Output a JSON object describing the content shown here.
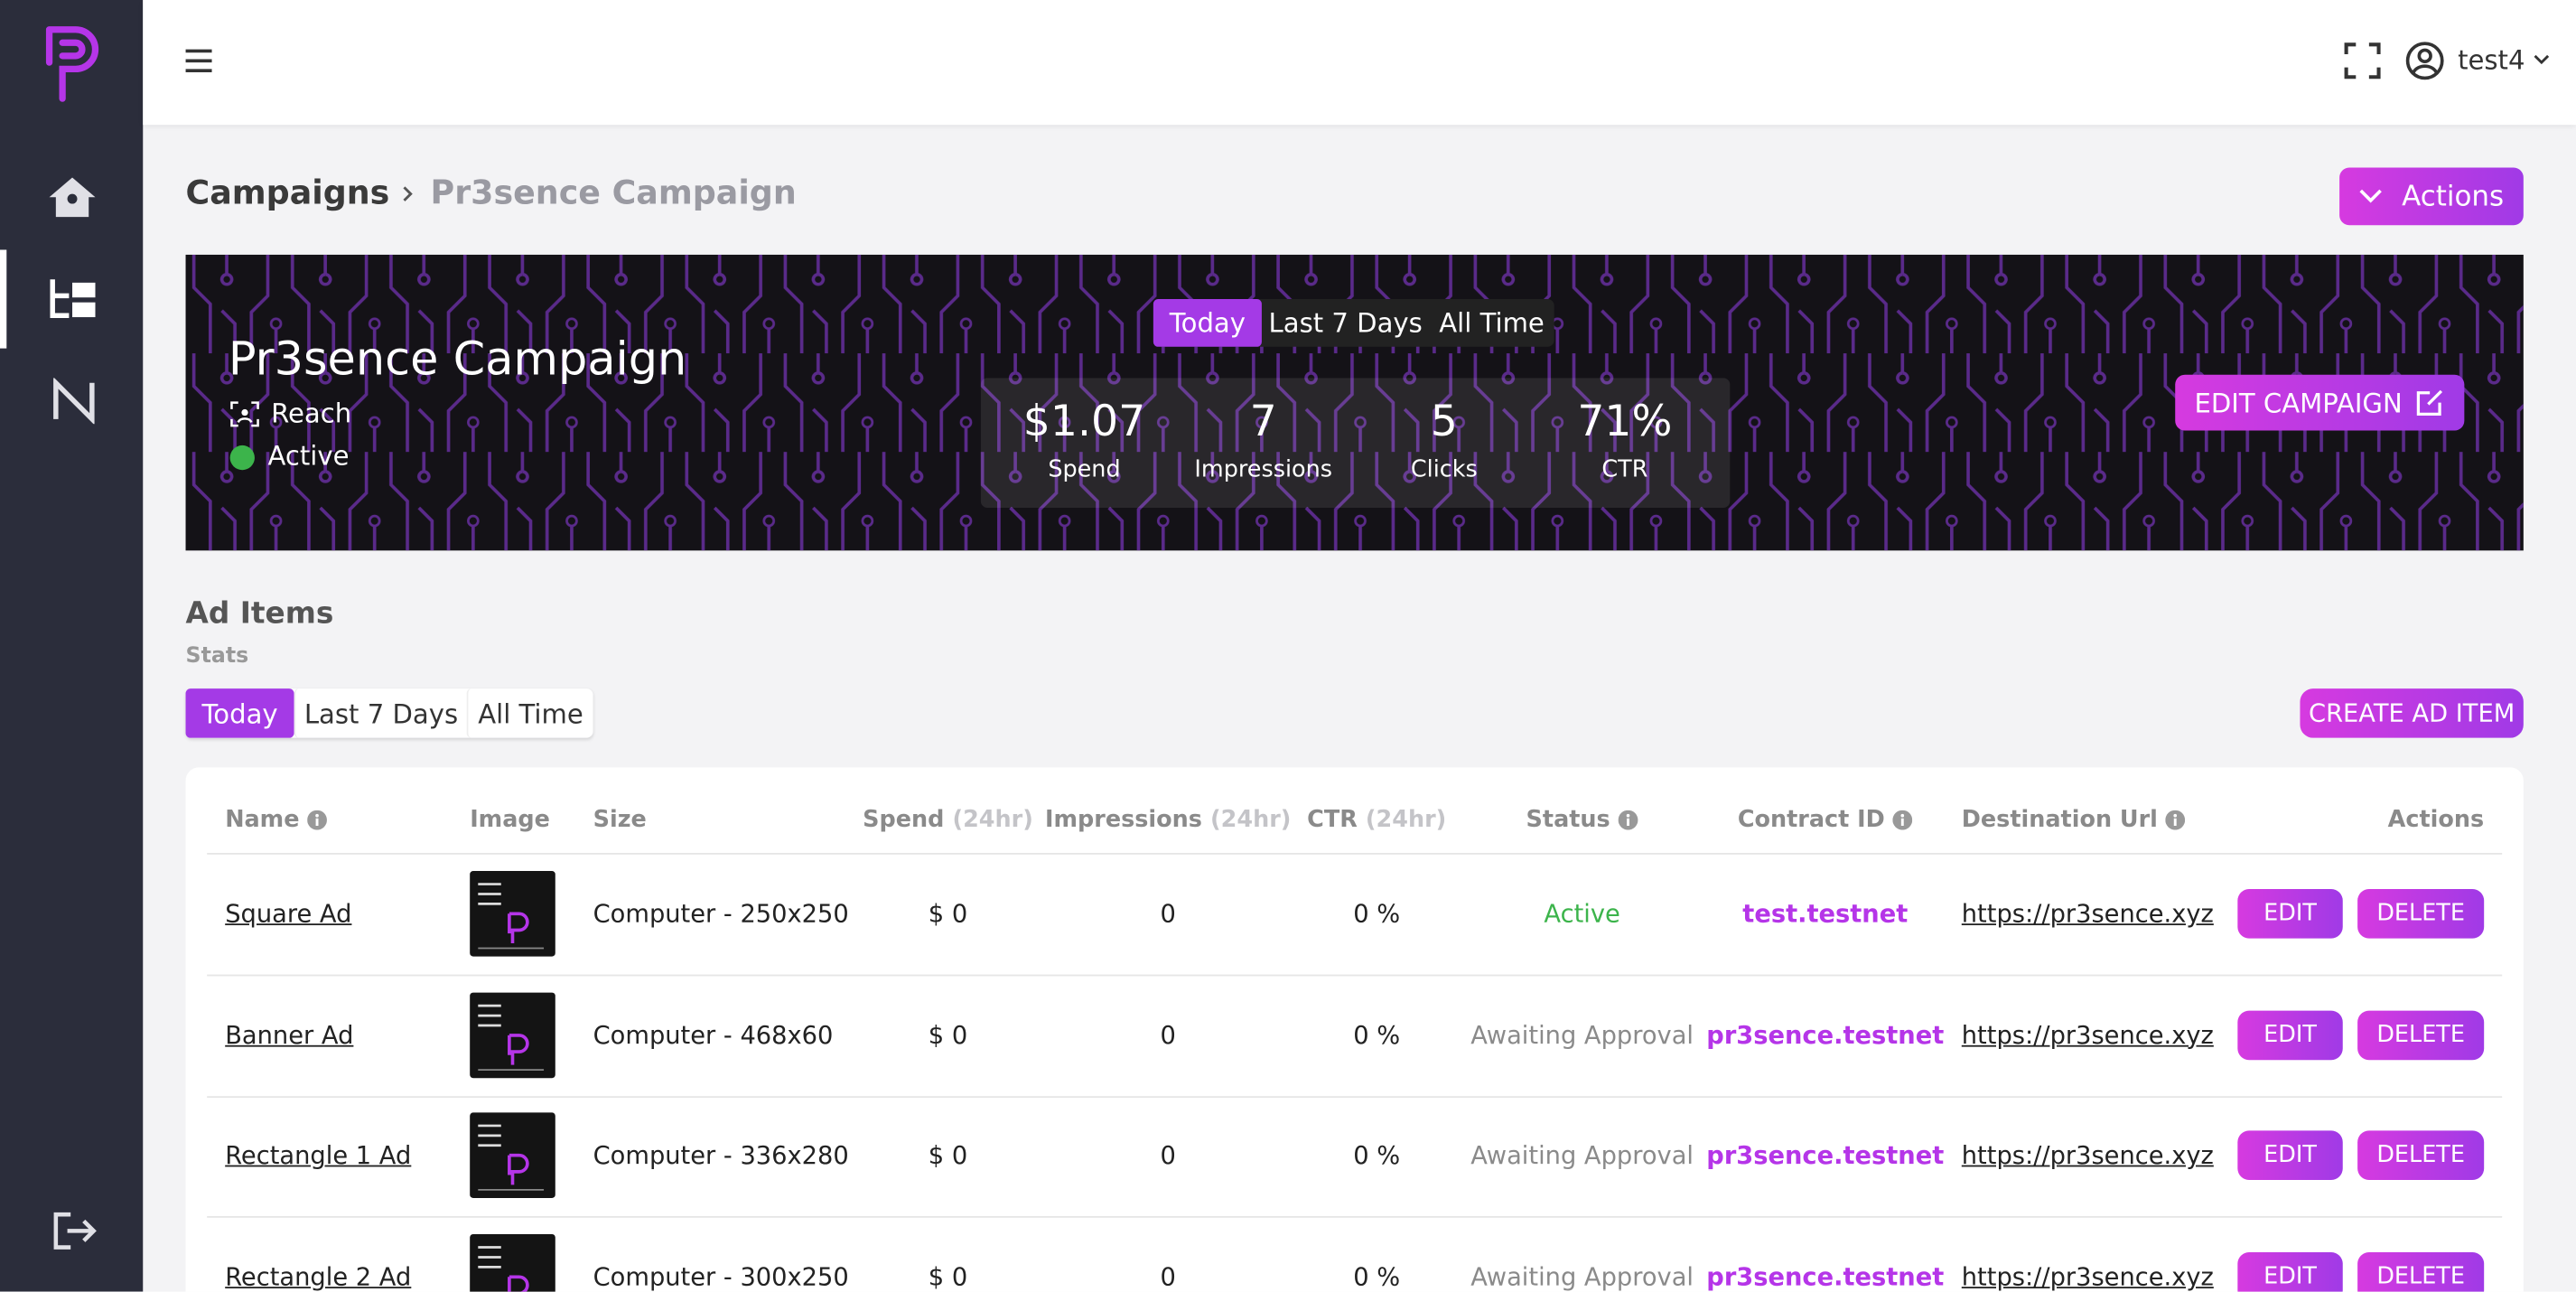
{
  "header": {
    "user": "test4"
  },
  "breadcrumb": [
    "Campaigns",
    "Pr3sence Campaign"
  ],
  "actions_button": "Actions",
  "campaign": {
    "name": "Pr3sence Campaign",
    "type": "Reach",
    "status": "Active",
    "tabs": [
      "Today",
      "Last 7 Days",
      "All Time"
    ],
    "stats": [
      {
        "value": "$1.07",
        "label": "Spend"
      },
      {
        "value": "7",
        "label": "Impressions"
      },
      {
        "value": "5",
        "label": "Clicks"
      },
      {
        "value": "71%",
        "label": "CTR"
      }
    ],
    "edit_button": "EDIT CAMPAIGN"
  },
  "ad_items": {
    "title": "Ad Items",
    "subtitle": "Stats",
    "tabs": [
      "Today",
      "Last 7 Days",
      "All Time"
    ],
    "create_button": "CREATE AD ITEM",
    "table": {
      "columns": [
        {
          "label": "Name",
          "info": true
        },
        {
          "label": "Image"
        },
        {
          "label": "Size"
        },
        {
          "label": "Spend",
          "note": "(24hr)"
        },
        {
          "label": "Impressions",
          "note": "(24hr)"
        },
        {
          "label": "CTR",
          "note": "(24hr)"
        },
        {
          "label": "Status",
          "info": true
        },
        {
          "label": "Contract ID",
          "info": true
        },
        {
          "label": "Destination Url",
          "info": true
        },
        {
          "label": "Actions"
        }
      ],
      "rows": [
        {
          "name": "Square Ad",
          "size": "Computer - 250x250",
          "spend": "$ 0",
          "impressions": "0",
          "ctr": "0 %",
          "status": "Active",
          "status_color": "#3cb44b",
          "contract": "test.testnet",
          "url": "https://pr3sence.xyz"
        },
        {
          "name": "Banner Ad",
          "size": "Computer - 468x60",
          "spend": "$ 0",
          "impressions": "0",
          "ctr": "0 %",
          "status": "Awaiting Approval",
          "status_color": "#8a8a8a",
          "contract": "pr3sence.testnet",
          "url": "https://pr3sence.xyz"
        },
        {
          "name": "Rectangle 1 Ad",
          "size": "Computer - 336x280",
          "spend": "$ 0",
          "impressions": "0",
          "ctr": "0 %",
          "status": "Awaiting Approval",
          "status_color": "#8a8a8a",
          "contract": "pr3sence.testnet",
          "url": "https://pr3sence.xyz"
        },
        {
          "name": "Rectangle 2 Ad",
          "size": "Computer - 300x250",
          "spend": "$ 0",
          "impressions": "0",
          "ctr": "0 %",
          "status": "Awaiting Approval",
          "status_color": "#8a8a8a",
          "contract": "pr3sence.testnet",
          "url": "https://pr3sence.xyz"
        }
      ],
      "edit": "EDIT",
      "delete": "DELETE"
    }
  }
}
